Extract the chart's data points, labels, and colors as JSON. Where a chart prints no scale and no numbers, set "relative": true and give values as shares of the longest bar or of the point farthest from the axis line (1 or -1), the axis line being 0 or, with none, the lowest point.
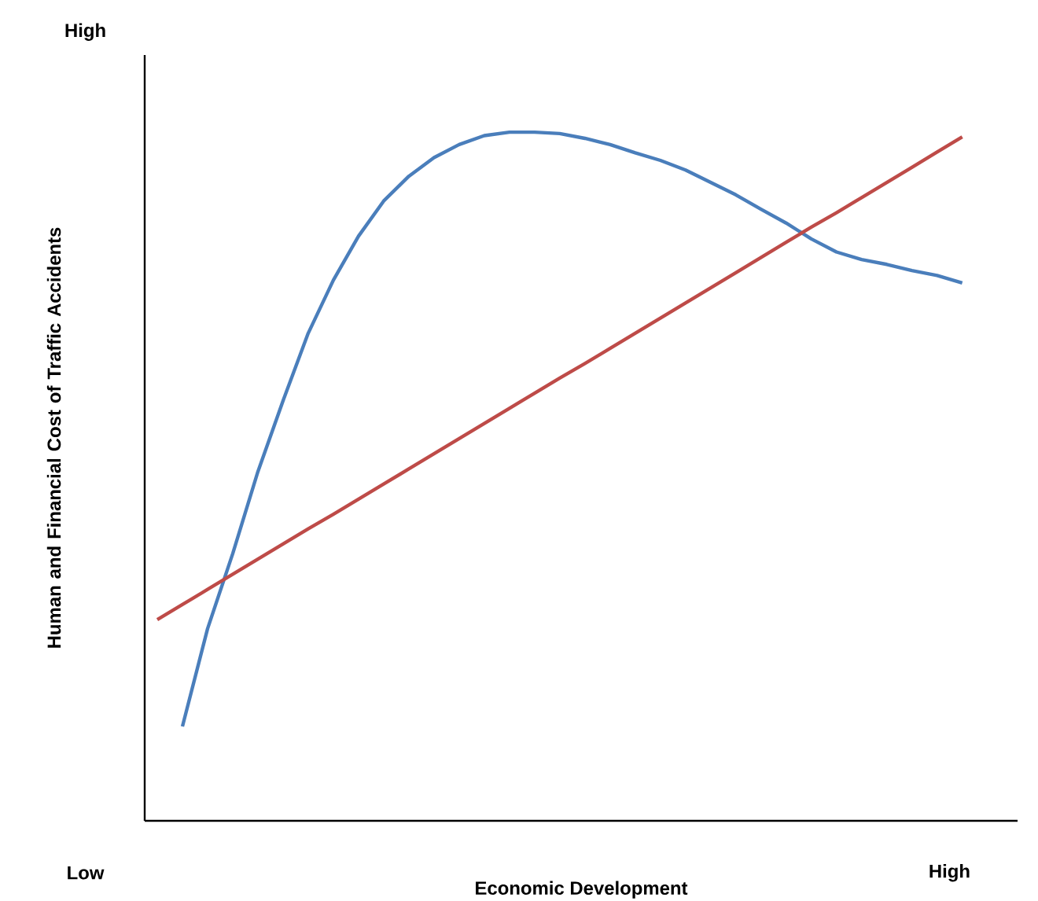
{
  "chart_data": {
    "type": "line",
    "relative": true,
    "xlabel": "Economic Development",
    "ylabel": "Human and Financial Cost of Traffic Accidents",
    "annotations": [
      "High",
      "Low",
      "High"
    ],
    "categories": [
      null,
      null,
      null,
      null,
      null,
      null,
      null,
      null,
      null,
      null,
      null,
      null,
      null,
      null,
      null,
      null,
      null,
      null,
      null,
      null,
      null,
      null,
      null,
      null,
      null,
      null,
      null,
      null,
      null,
      null,
      null,
      null,
      null
    ],
    "series": [
      {
        "color": "#4a7ebb",
        "values": [
          null,
          0.137,
          0.279,
          0.388,
          0.507,
          0.61,
          0.708,
          0.785,
          0.849,
          0.9,
          0.936,
          0.963,
          0.982,
          0.995,
          1,
          1,
          0.998,
          0.991,
          0.982,
          0.97,
          0.959,
          0.945,
          0.927,
          0.909,
          0.888,
          0.868,
          0.845,
          0.826,
          0.815,
          0.808,
          0.799,
          0.792,
          0.781
        ]
      },
      {
        "color": "#be4b48",
        "values": [
          0.292,
          0.314,
          0.336,
          0.358,
          0.38,
          0.402,
          0.424,
          0.445,
          0.467,
          0.489,
          0.511,
          0.533,
          0.555,
          0.577,
          0.599,
          0.621,
          0.643,
          0.664,
          0.686,
          0.708,
          0.73,
          0.752,
          0.774,
          0.796,
          0.818,
          0.84,
          0.862,
          0.883,
          0.905,
          0.927,
          0.949,
          0.971,
          0.993
        ]
      }
    ]
  }
}
